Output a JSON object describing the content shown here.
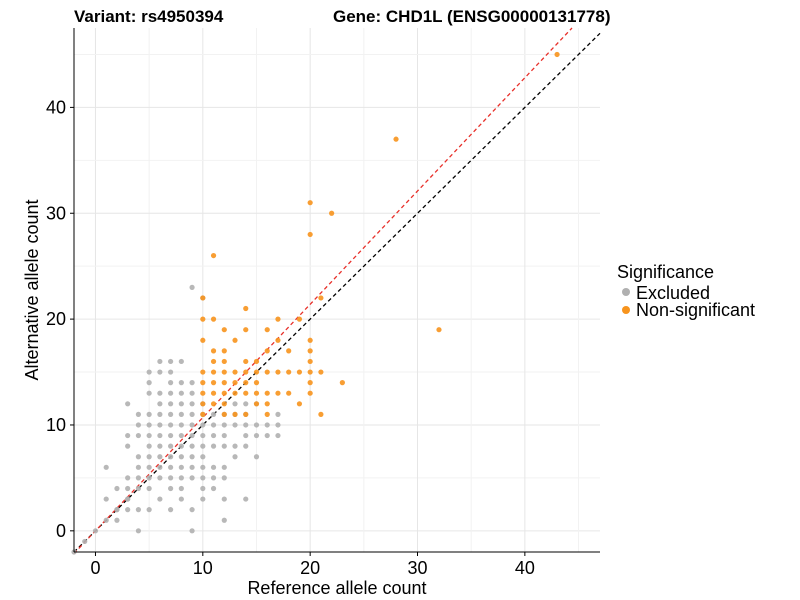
{
  "header": {
    "variant_title": "Variant: rs4950394",
    "gene_title": "Gene: CHD1L (ENSG00000131778)"
  },
  "chart_data": {
    "type": "scatter",
    "xlabel": "Reference allele count",
    "ylabel": "Alternative allele count",
    "xlim": [
      -2,
      47
    ],
    "ylim": [
      -2,
      47.5
    ],
    "x_ticks": [
      0,
      10,
      20,
      30,
      40
    ],
    "y_ticks": [
      0,
      10,
      20,
      30,
      40
    ],
    "grid": true,
    "legend": {
      "title": "Significance",
      "placement": "right",
      "entries": [
        {
          "label": "Excluded",
          "color": "#b0b0b0"
        },
        {
          "label": "Non-significant",
          "color": "#f7941d"
        }
      ]
    },
    "reference_lines": [
      {
        "style": "dashed",
        "color": "#000000",
        "slope": 1,
        "intercept": 0
      },
      {
        "style": "dashed",
        "color": "#e8302a",
        "slope": 1.07,
        "intercept": 0
      }
    ],
    "series": [
      {
        "name": "Excluded",
        "color": "#b0b0b0",
        "points": [
          [
            -2,
            -2
          ],
          [
            -1,
            -1
          ],
          [
            0,
            0
          ],
          [
            1,
            1
          ],
          [
            2,
            2
          ],
          [
            3,
            3
          ],
          [
            1,
            3
          ],
          [
            1,
            6
          ],
          [
            2,
            4
          ],
          [
            2,
            1
          ],
          [
            2,
            2
          ],
          [
            3,
            2
          ],
          [
            3,
            3
          ],
          [
            3,
            4
          ],
          [
            3,
            5
          ],
          [
            3,
            8
          ],
          [
            3,
            9
          ],
          [
            3,
            12
          ],
          [
            4,
            0
          ],
          [
            4,
            2
          ],
          [
            4,
            4
          ],
          [
            4,
            5
          ],
          [
            4,
            6
          ],
          [
            4,
            7
          ],
          [
            4,
            9
          ],
          [
            4,
            10
          ],
          [
            4,
            11
          ],
          [
            5,
            2
          ],
          [
            5,
            4
          ],
          [
            5,
            5
          ],
          [
            5,
            6
          ],
          [
            5,
            7
          ],
          [
            5,
            8
          ],
          [
            5,
            9
          ],
          [
            5,
            10
          ],
          [
            5,
            11
          ],
          [
            5,
            13
          ],
          [
            5,
            14
          ],
          [
            5,
            15
          ],
          [
            6,
            3
          ],
          [
            6,
            5
          ],
          [
            6,
            6
          ],
          [
            6,
            7
          ],
          [
            6,
            8
          ],
          [
            6,
            9
          ],
          [
            6,
            10
          ],
          [
            6,
            11
          ],
          [
            6,
            12
          ],
          [
            6,
            13
          ],
          [
            6,
            15
          ],
          [
            6,
            16
          ],
          [
            7,
            2
          ],
          [
            7,
            4
          ],
          [
            7,
            5
          ],
          [
            7,
            6
          ],
          [
            7,
            7
          ],
          [
            7,
            8
          ],
          [
            7,
            9
          ],
          [
            7,
            10
          ],
          [
            7,
            11
          ],
          [
            7,
            12
          ],
          [
            7,
            13
          ],
          [
            7,
            14
          ],
          [
            7,
            15
          ],
          [
            7,
            16
          ],
          [
            8,
            3
          ],
          [
            8,
            4
          ],
          [
            8,
            5
          ],
          [
            8,
            6
          ],
          [
            8,
            7
          ],
          [
            8,
            8
          ],
          [
            8,
            9
          ],
          [
            8,
            10
          ],
          [
            8,
            11
          ],
          [
            8,
            12
          ],
          [
            8,
            13
          ],
          [
            8,
            14
          ],
          [
            8,
            16
          ],
          [
            9,
            0
          ],
          [
            9,
            2
          ],
          [
            9,
            5
          ],
          [
            9,
            6
          ],
          [
            9,
            7
          ],
          [
            9,
            8
          ],
          [
            9,
            9
          ],
          [
            9,
            10
          ],
          [
            9,
            11
          ],
          [
            9,
            12
          ],
          [
            9,
            13
          ],
          [
            9,
            14
          ],
          [
            9,
            23
          ],
          [
            10,
            3
          ],
          [
            10,
            4
          ],
          [
            10,
            5
          ],
          [
            10,
            6
          ],
          [
            10,
            7
          ],
          [
            10,
            8
          ],
          [
            10,
            9
          ],
          [
            10,
            10
          ],
          [
            10,
            11
          ],
          [
            10,
            12
          ],
          [
            10,
            22
          ],
          [
            11,
            4
          ],
          [
            11,
            5
          ],
          [
            11,
            6
          ],
          [
            11,
            8
          ],
          [
            11,
            9
          ],
          [
            11,
            10
          ],
          [
            11,
            11
          ],
          [
            12,
            1
          ],
          [
            12,
            3
          ],
          [
            12,
            5
          ],
          [
            12,
            6
          ],
          [
            12,
            8
          ],
          [
            12,
            9
          ],
          [
            12,
            10
          ],
          [
            12,
            11
          ],
          [
            13,
            7
          ],
          [
            13,
            8
          ],
          [
            13,
            10
          ],
          [
            13,
            11
          ],
          [
            13,
            12
          ],
          [
            14,
            3
          ],
          [
            14,
            8
          ],
          [
            14,
            9
          ],
          [
            14,
            10
          ],
          [
            14,
            11
          ],
          [
            14,
            12
          ],
          [
            15,
            7
          ],
          [
            15,
            9
          ],
          [
            15,
            10
          ],
          [
            15,
            12
          ],
          [
            16,
            9
          ],
          [
            16,
            10
          ],
          [
            17,
            9
          ],
          [
            17,
            10
          ],
          [
            17,
            11
          ]
        ]
      },
      {
        "name": "Non-significant",
        "color": "#f7941d",
        "points": [
          [
            10,
            11
          ],
          [
            10,
            12
          ],
          [
            10,
            13
          ],
          [
            10,
            14
          ],
          [
            10,
            15
          ],
          [
            10,
            18
          ],
          [
            10,
            20
          ],
          [
            10,
            22
          ],
          [
            11,
            12
          ],
          [
            11,
            13
          ],
          [
            11,
            14
          ],
          [
            11,
            15
          ],
          [
            11,
            16
          ],
          [
            11,
            17
          ],
          [
            11,
            20
          ],
          [
            11,
            26
          ],
          [
            12,
            11
          ],
          [
            12,
            12
          ],
          [
            12,
            13
          ],
          [
            12,
            14
          ],
          [
            12,
            15
          ],
          [
            12,
            16
          ],
          [
            12,
            17
          ],
          [
            12,
            19
          ],
          [
            13,
            11
          ],
          [
            13,
            13
          ],
          [
            13,
            14
          ],
          [
            13,
            15
          ],
          [
            13,
            18
          ],
          [
            14,
            11
          ],
          [
            14,
            13
          ],
          [
            14,
            14
          ],
          [
            14,
            15
          ],
          [
            14,
            16
          ],
          [
            14,
            19
          ],
          [
            14,
            21
          ],
          [
            15,
            12
          ],
          [
            15,
            13
          ],
          [
            15,
            14
          ],
          [
            15,
            15
          ],
          [
            15,
            16
          ],
          [
            16,
            11
          ],
          [
            16,
            12
          ],
          [
            16,
            13
          ],
          [
            16,
            15
          ],
          [
            16,
            17
          ],
          [
            16,
            19
          ],
          [
            17,
            13
          ],
          [
            17,
            15
          ],
          [
            17,
            18
          ],
          [
            17,
            20
          ],
          [
            18,
            13
          ],
          [
            18,
            15
          ],
          [
            18,
            17
          ],
          [
            19,
            12
          ],
          [
            19,
            15
          ],
          [
            19,
            20
          ],
          [
            20,
            13
          ],
          [
            20,
            14
          ],
          [
            20,
            15
          ],
          [
            20,
            16
          ],
          [
            20,
            17
          ],
          [
            20,
            18
          ],
          [
            20,
            28
          ],
          [
            20,
            31
          ],
          [
            21,
            11
          ],
          [
            21,
            15
          ],
          [
            21,
            22
          ],
          [
            22,
            30
          ],
          [
            23,
            14
          ],
          [
            28,
            37
          ],
          [
            32,
            19
          ],
          [
            43,
            45
          ]
        ]
      }
    ]
  }
}
